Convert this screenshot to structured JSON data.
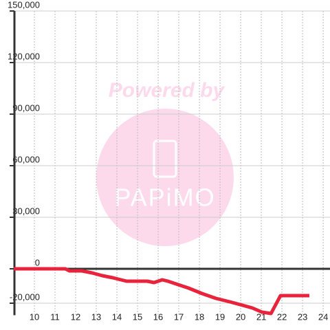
{
  "chart_data": {
    "type": "line",
    "watermark": {
      "title": "Powered by",
      "logo": "PAPiMO"
    },
    "x": [
      9,
      11.5,
      11.7,
      12.3,
      12.8,
      13.3,
      13.8,
      14.47,
      15.47,
      15.8,
      16.2,
      16.47,
      16.97,
      17.47,
      18.13,
      18.8,
      19.47,
      19.97,
      20.57,
      21.03,
      21.47,
      21.93,
      23.33
    ],
    "series": [
      {
        "color": "#e8233c",
        "values": [
          0,
          0,
          -1200,
          -1200,
          -2400,
          -4000,
          -5200,
          -7200,
          -7200,
          -8000,
          -6400,
          -7200,
          -9200,
          -11200,
          -14400,
          -17200,
          -19200,
          -20800,
          -22800,
          -25200,
          -26000,
          -15600,
          -15600
        ]
      }
    ],
    "xlim": [
      9,
      24.33
    ],
    "xticks": [
      10,
      11,
      12,
      13,
      14,
      15,
      16,
      17,
      18,
      19,
      20,
      21,
      22,
      23,
      24
    ],
    "ylim": [
      -27000,
      150000
    ],
    "yticks": [
      {
        "value": -20000,
        "label": "-20,000"
      },
      0,
      {
        "value": 30000,
        "label": "30,000"
      },
      {
        "value": 60000,
        "label": "60,000"
      },
      {
        "value": 90000,
        "label": "90,000"
      },
      {
        "value": 120000,
        "label": "120,000"
      },
      {
        "value": 150000,
        "label": "150,000"
      }
    ],
    "grid": true
  }
}
